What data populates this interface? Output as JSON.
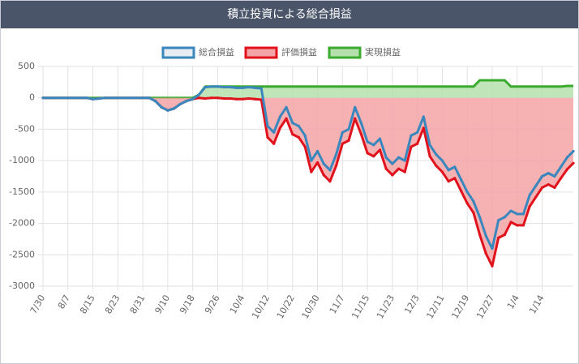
{
  "chart_data": {
    "type": "line",
    "title": "積立投資による総合損益",
    "categories": [
      "7/30",
      null,
      null,
      null,
      "8/7",
      null,
      null,
      null,
      "8/15",
      null,
      null,
      null,
      "8/23",
      null,
      null,
      null,
      "8/31",
      null,
      null,
      null,
      "9/10",
      null,
      null,
      null,
      "9/18",
      null,
      null,
      null,
      "9/26",
      null,
      null,
      null,
      "10/4",
      null,
      null,
      null,
      "10/12",
      null,
      null,
      null,
      "10/22",
      null,
      null,
      null,
      "10/30",
      null,
      null,
      null,
      "11/7",
      null,
      null,
      null,
      "11/15",
      null,
      null,
      null,
      "11/23",
      null,
      null,
      null,
      "12/3",
      null,
      null,
      null,
      "12/11",
      null,
      null,
      null,
      "12/19",
      null,
      null,
      null,
      "12/27",
      null,
      null,
      null,
      "1/4",
      null,
      null,
      null,
      "1/14",
      null,
      null,
      null,
      null,
      null
    ],
    "series": [
      {
        "name": "総合損益",
        "color": "#3a87bd",
        "fill_color": "#e6ecf2",
        "fill": false,
        "points": true,
        "values": [
          0,
          0,
          0,
          0,
          0,
          0,
          0,
          0,
          -20,
          -10,
          0,
          0,
          0,
          0,
          0,
          0,
          0,
          0,
          -50,
          -150,
          -200,
          -170,
          -100,
          -50,
          -20,
          50,
          170,
          180,
          180,
          170,
          170,
          160,
          160,
          170,
          160,
          150,
          -450,
          -550,
          -300,
          -150,
          -400,
          -450,
          -600,
          -1000,
          -850,
          -1050,
          -1150,
          -900,
          -550,
          -500,
          -150,
          -400,
          -700,
          -750,
          -650,
          -950,
          -1050,
          -950,
          -1000,
          -600,
          -550,
          -300,
          -750,
          -900,
          -1000,
          -1150,
          -1100,
          -1300,
          -1500,
          -1650,
          -1900,
          -2200,
          -2400,
          -1950,
          -1900,
          -1800,
          -1850,
          -1850,
          -1550,
          -1400,
          -1250,
          -1200,
          -1250,
          -1100,
          -950,
          -850
        ]
      },
      {
        "name": "評価損益",
        "color": "#e0121c",
        "fill_color": "#f4a3a6",
        "fill": true,
        "points": true,
        "values": [
          0,
          0,
          0,
          0,
          0,
          0,
          0,
          0,
          -20,
          -10,
          0,
          0,
          0,
          0,
          0,
          0,
          0,
          0,
          -50,
          -150,
          -200,
          -170,
          -100,
          -50,
          -20,
          0,
          -10,
          0,
          0,
          -10,
          -10,
          -20,
          -20,
          -10,
          -20,
          -30,
          -630,
          -730,
          -480,
          -330,
          -580,
          -630,
          -780,
          -1180,
          -1030,
          -1230,
          -1330,
          -1080,
          -730,
          -680,
          -330,
          -580,
          -880,
          -930,
          -830,
          -1130,
          -1230,
          -1130,
          -1180,
          -780,
          -730,
          -480,
          -930,
          -1080,
          -1180,
          -1330,
          -1280,
          -1480,
          -1680,
          -1830,
          -2180,
          -2480,
          -2680,
          -2230,
          -2180,
          -1980,
          -2030,
          -2030,
          -1730,
          -1580,
          -1430,
          -1380,
          -1430,
          -1280,
          -1140,
          -1040
        ]
      },
      {
        "name": "実現損益",
        "color": "#3aab2f",
        "fill_color": "#b5e0ac",
        "fill": true,
        "points": false,
        "values": [
          0,
          0,
          0,
          0,
          0,
          0,
          0,
          0,
          0,
          0,
          0,
          0,
          0,
          0,
          0,
          0,
          0,
          0,
          0,
          0,
          0,
          0,
          0,
          0,
          0,
          50,
          180,
          180,
          180,
          180,
          180,
          180,
          180,
          180,
          180,
          180,
          180,
          180,
          180,
          180,
          180,
          180,
          180,
          180,
          180,
          180,
          180,
          180,
          180,
          180,
          180,
          180,
          180,
          180,
          180,
          180,
          180,
          180,
          180,
          180,
          180,
          180,
          180,
          180,
          180,
          180,
          180,
          180,
          180,
          180,
          280,
          280,
          280,
          280,
          280,
          180,
          180,
          180,
          180,
          180,
          180,
          180,
          180,
          180,
          190,
          190
        ]
      }
    ],
    "ylim": [
      -3000,
      500
    ],
    "yticks": [
      -3000,
      -2500,
      -2000,
      -1500,
      -1000,
      -500,
      0,
      500
    ],
    "grid": true,
    "legend": "top"
  }
}
